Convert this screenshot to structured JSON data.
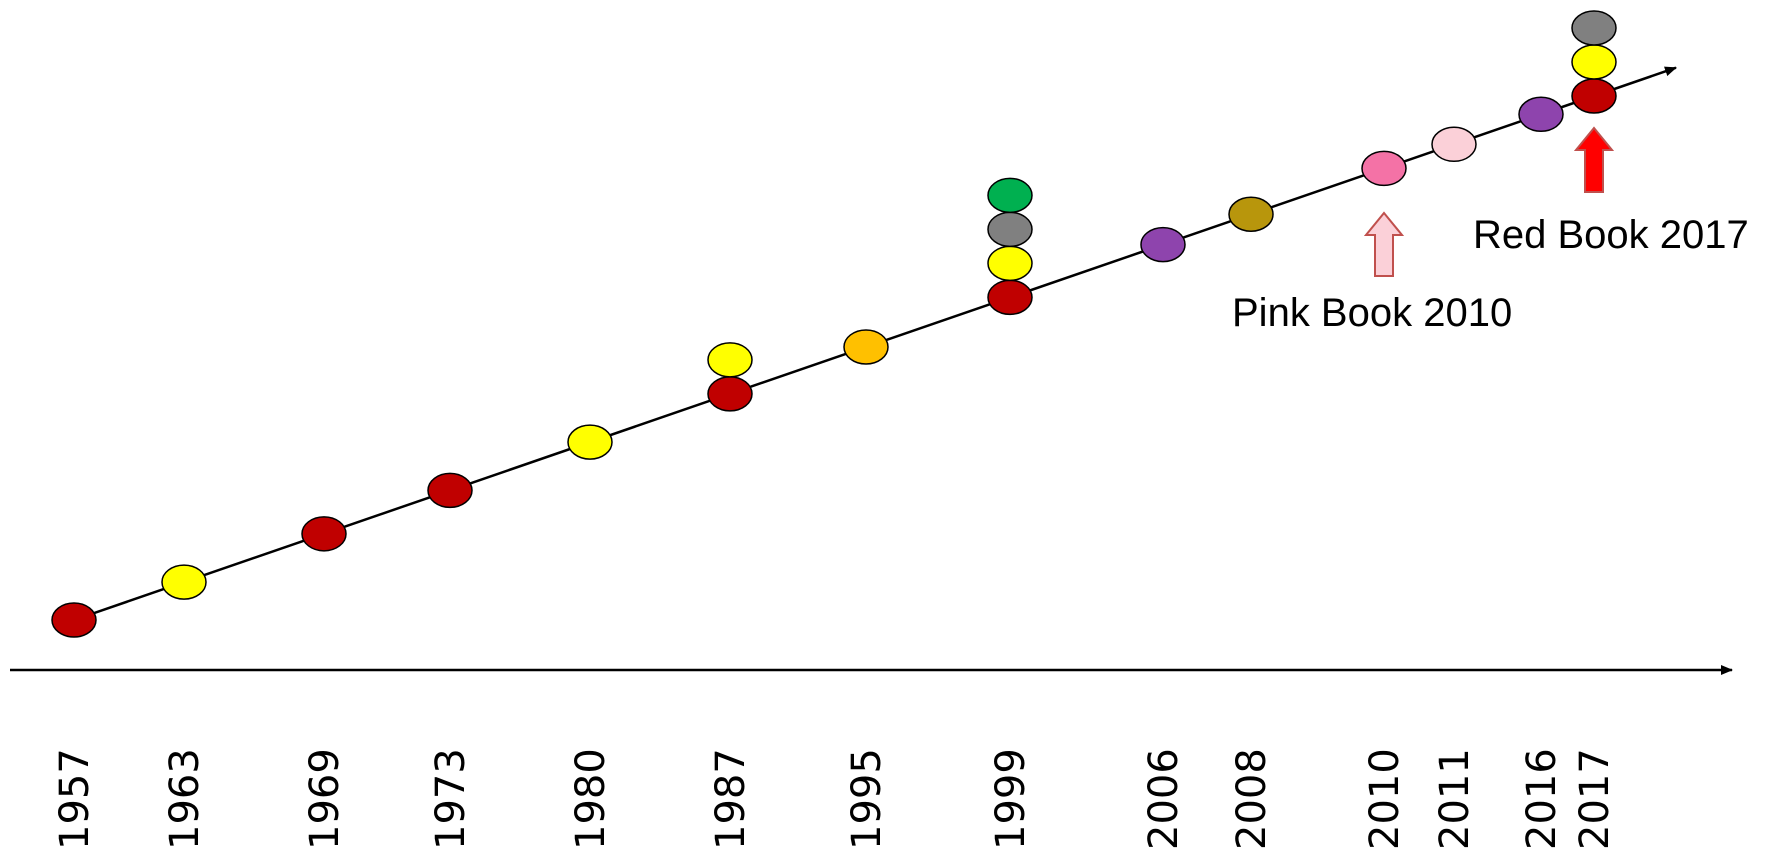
{
  "years": [
    "1957",
    "1963",
    "1969",
    "1973",
    "1980",
    "1987",
    "1995",
    "1999",
    "2006",
    "2008",
    "2010",
    "2011",
    "2016",
    "2017"
  ],
  "markers": [
    {
      "year": "1957",
      "colors": [
        "#c00000"
      ]
    },
    {
      "year": "1963",
      "colors": [
        "#ffff00"
      ]
    },
    {
      "year": "1969",
      "colors": [
        "#c00000"
      ]
    },
    {
      "year": "1973",
      "colors": [
        "#c00000"
      ]
    },
    {
      "year": "1980",
      "colors": [
        "#ffff00"
      ]
    },
    {
      "year": "1987",
      "colors": [
        "#c00000",
        "#ffff00"
      ]
    },
    {
      "year": "1995",
      "colors": [
        "#ffc000"
      ]
    },
    {
      "year": "1999",
      "colors": [
        "#c00000",
        "#ffff00",
        "#808080",
        "#00b050"
      ]
    },
    {
      "year": "2006",
      "colors": [
        "#8e44ad"
      ]
    },
    {
      "year": "2008",
      "colors": [
        "#b8960c"
      ]
    },
    {
      "year": "2010",
      "colors": [
        "#f472a6"
      ]
    },
    {
      "year": "2011",
      "colors": [
        "#fbd0d8"
      ]
    },
    {
      "year": "2016",
      "colors": [
        "#8e44ad"
      ]
    },
    {
      "year": "2017",
      "colors": [
        "#c00000",
        "#ffff00",
        "#808080"
      ]
    }
  ],
  "annotations": [
    {
      "text": "Pink Book 2010",
      "year": "2010",
      "arrow_fill": "#fbd0d8",
      "arrow_stroke": "#c0504d"
    },
    {
      "text": "Red Book 2017",
      "year": "2017",
      "arrow_fill": "#ff0000",
      "arrow_stroke": "#c0504d"
    }
  ],
  "colors": {
    "line": "#000000",
    "marker_outline": "#000000"
  }
}
